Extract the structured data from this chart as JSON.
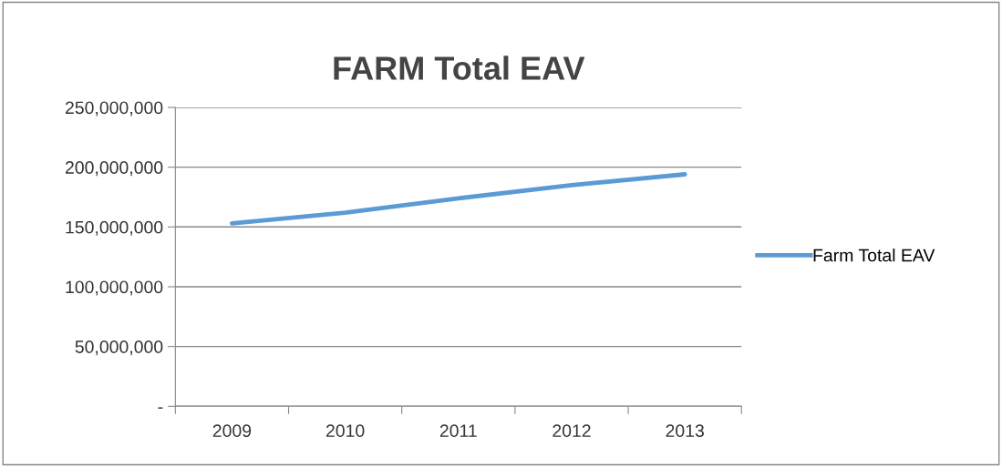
{
  "chart_data": {
    "type": "line",
    "title": "FARM Total EAV",
    "categories": [
      "2009",
      "2010",
      "2011",
      "2012",
      "2013"
    ],
    "series": [
      {
        "name": "Farm Total EAV",
        "color": "#5b9bd5",
        "values": [
          153000000,
          162000000,
          174000000,
          185000000,
          194000000
        ]
      }
    ],
    "ylim": [
      0,
      250000000
    ],
    "yticks": [
      {
        "value": 0,
        "label": "-"
      },
      {
        "value": 50000000,
        "label": "50,000,000"
      },
      {
        "value": 100000000,
        "label": "100,000,000"
      },
      {
        "value": 150000000,
        "label": "150,000,000"
      },
      {
        "value": 200000000,
        "label": "200,000,000"
      },
      {
        "value": 250000000,
        "label": "250,000,000"
      }
    ],
    "grid": "y",
    "legend": "right",
    "marker": "none",
    "line_style": "solid"
  }
}
